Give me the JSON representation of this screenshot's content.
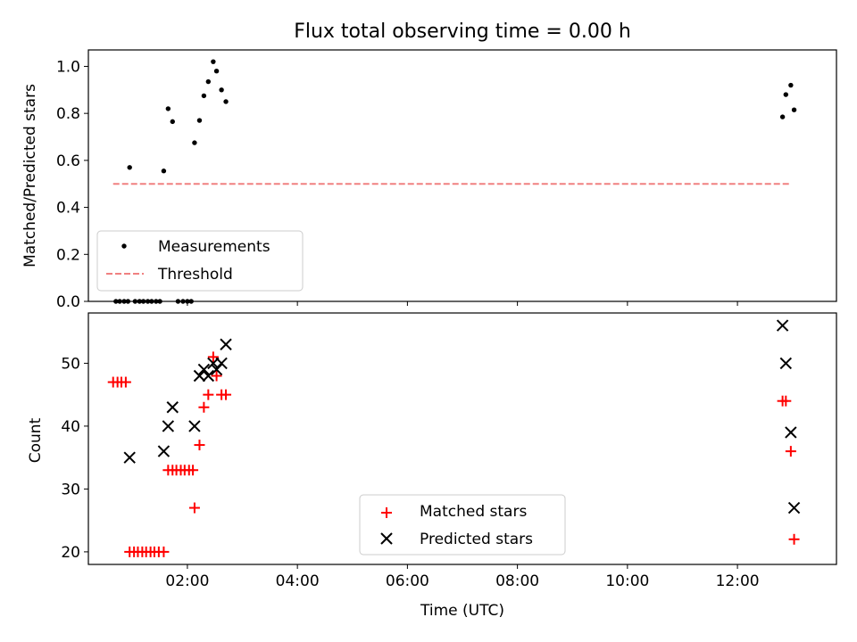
{
  "title": "Flux total observing time = 0.00 h",
  "colors": {
    "measurement": "#000000",
    "threshold": "#f08080",
    "matched": "#ff0000",
    "predicted": "#000000"
  },
  "chart_data": [
    {
      "type": "scatter",
      "ylabel": "Matched/Predicted stars",
      "xlim_hours": [
        0.2,
        13.8
      ],
      "ylim": [
        0,
        1.07
      ],
      "yticks": [
        0.0,
        0.2,
        0.4,
        0.6,
        0.8,
        1.0
      ],
      "ytick_labels": [
        "0.0",
        "0.2",
        "0.4",
        "0.6",
        "0.8",
        "1.0"
      ],
      "legend": "bottom-left",
      "series": [
        {
          "name": "Measurements",
          "marker": "dot",
          "x_hours": [
            0.95,
            1.57,
            1.65,
            1.73,
            2.13,
            2.22,
            2.3,
            2.38,
            2.47,
            2.53,
            2.62,
            2.7,
            12.82,
            12.88,
            12.97,
            13.03,
            0.7,
            0.77,
            0.85,
            0.92,
            1.05,
            1.13,
            1.2,
            1.28,
            1.35,
            1.43,
            1.5,
            1.83,
            1.92,
            2.0,
            2.07
          ],
          "y": [
            0.57,
            0.555,
            0.82,
            0.765,
            0.675,
            0.77,
            0.875,
            0.935,
            1.02,
            0.98,
            0.9,
            0.85,
            0.785,
            0.88,
            0.92,
            0.815,
            0.0,
            0.0,
            0.0,
            0.0,
            0.0,
            0.0,
            0.0,
            0.0,
            0.0,
            0.0,
            0.0,
            0.0,
            0.0,
            0.0,
            0.0
          ]
        },
        {
          "name": "Threshold",
          "style": "dashed",
          "x_hours": [
            0.65,
            12.95
          ],
          "y": [
            0.5,
            0.5
          ]
        }
      ]
    },
    {
      "type": "scatter",
      "ylabel": "Count",
      "xlabel": "Time (UTC)",
      "xlim_hours": [
        0.2,
        13.8
      ],
      "ylim": [
        18,
        58
      ],
      "yticks": [
        20,
        30,
        40,
        50
      ],
      "ytick_labels": [
        "20",
        "30",
        "40",
        "50"
      ],
      "xticks_hours": [
        2,
        4,
        6,
        8,
        10,
        12
      ],
      "xtick_labels": [
        "02:00",
        "04:00",
        "06:00",
        "08:00",
        "10:00",
        "12:00"
      ],
      "legend": "bottom-center",
      "series": [
        {
          "name": "Matched stars",
          "marker": "plus",
          "x_hours": [
            0.65,
            0.73,
            0.8,
            0.88,
            0.95,
            1.03,
            1.1,
            1.18,
            1.25,
            1.33,
            1.4,
            1.48,
            1.57,
            1.65,
            1.73,
            1.8,
            1.88,
            1.95,
            2.03,
            2.1,
            2.13,
            2.22,
            2.3,
            2.38,
            2.47,
            2.53,
            2.62,
            2.7,
            12.82,
            12.88,
            12.97,
            13.03
          ],
          "y": [
            47,
            47,
            47,
            47,
            20,
            20,
            20,
            20,
            20,
            20,
            20,
            20,
            20,
            33,
            33,
            33,
            33,
            33,
            33,
            33,
            27,
            37,
            43,
            45,
            51,
            48,
            45,
            45,
            44,
            44,
            36,
            22
          ]
        },
        {
          "name": "Predicted stars",
          "marker": "x",
          "x_hours": [
            0.95,
            1.57,
            1.65,
            1.73,
            2.13,
            2.22,
            2.3,
            2.38,
            2.47,
            2.53,
            2.62,
            2.7,
            12.82,
            12.88,
            12.97,
            13.03
          ],
          "y": [
            35,
            36,
            40,
            43,
            40,
            48,
            49,
            48,
            50,
            49,
            50,
            53,
            56,
            50,
            39,
            27
          ]
        }
      ]
    }
  ]
}
